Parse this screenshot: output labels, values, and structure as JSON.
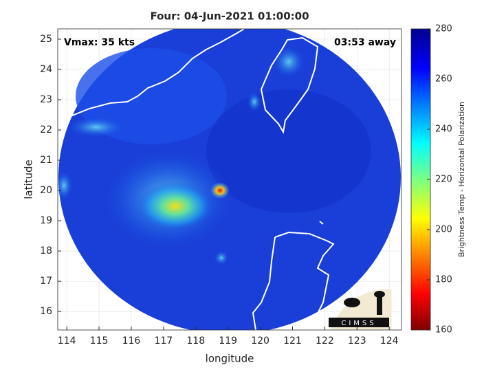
{
  "chart_data": {
    "type": "map",
    "title": "Four: 04-Jun-2021 01:00:00",
    "x_label": "longitude",
    "y_label": "latitude",
    "annotations": [
      "Vmax: 35 kts",
      "03:53 away"
    ],
    "logo": "CIMSS",
    "xlim": [
      113.72,
      124.38
    ],
    "xticks": [
      114,
      115,
      116,
      117,
      118,
      119,
      120,
      121,
      122,
      123,
      124
    ],
    "ylim": [
      15.39,
      25.34
    ],
    "yticks": [
      16,
      17,
      18,
      19,
      20,
      21,
      22,
      23,
      24,
      25
    ],
    "grid": true,
    "colorbar": {
      "label": "Brightness Temp - Horizontal Polarization",
      "lim": [
        160,
        280
      ],
      "ticks": [
        160,
        180,
        200,
        220,
        240,
        260,
        280
      ]
    }
  }
}
